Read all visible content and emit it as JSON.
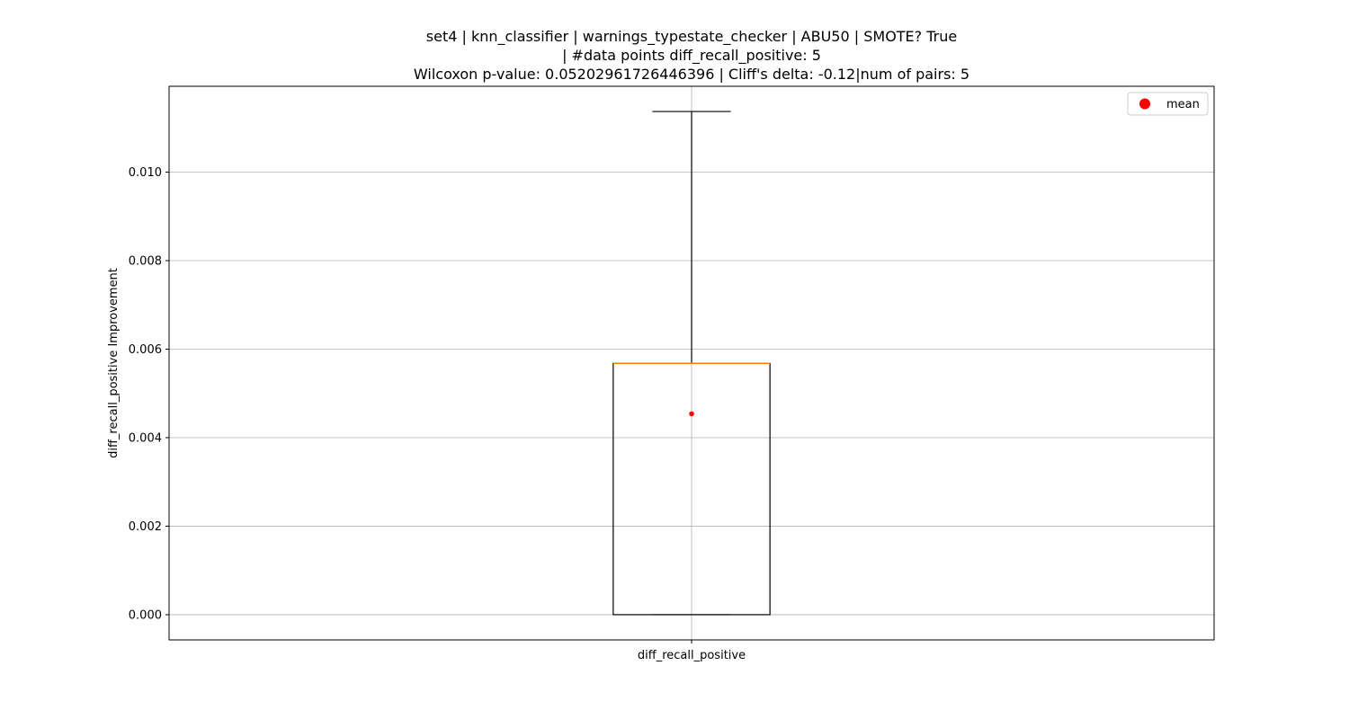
{
  "chart_data": {
    "type": "box",
    "title_lines": [
      "set4 | knn_classifier | warnings_typestate_checker | ABU50 | SMOTE? True",
      "| #data points diff_recall_positive: 5",
      "Wilcoxon p-value: 0.05202961726446396 | Cliff's delta: -0.12|num of pairs: 5"
    ],
    "xlabel": "",
    "ylabel": "diff_recall_positive Improvement",
    "categories": [
      "diff_recall_positive"
    ],
    "boxes": [
      {
        "category": "diff_recall_positive",
        "whisker_low": 0.0,
        "q1": 0.0,
        "median": 0.00568,
        "q3": 0.00568,
        "whisker_high": 0.01137,
        "mean": 0.00454
      }
    ],
    "ylim": [
      -0.00057,
      0.01194
    ],
    "yticks": [
      0.0,
      0.002,
      0.004,
      0.006,
      0.008,
      0.01
    ],
    "ytick_labels": [
      "0.000",
      "0.002",
      "0.004",
      "0.006",
      "0.008",
      "0.010"
    ],
    "grid": true,
    "legend": {
      "placement": "top-right",
      "entries": [
        {
          "label": "mean",
          "marker": "circle",
          "color": "#ff0000"
        }
      ]
    },
    "colors": {
      "box": "#000000",
      "median": "#ff7f0e",
      "mean": "#ff0000",
      "grid": "#b0b0b0"
    }
  }
}
